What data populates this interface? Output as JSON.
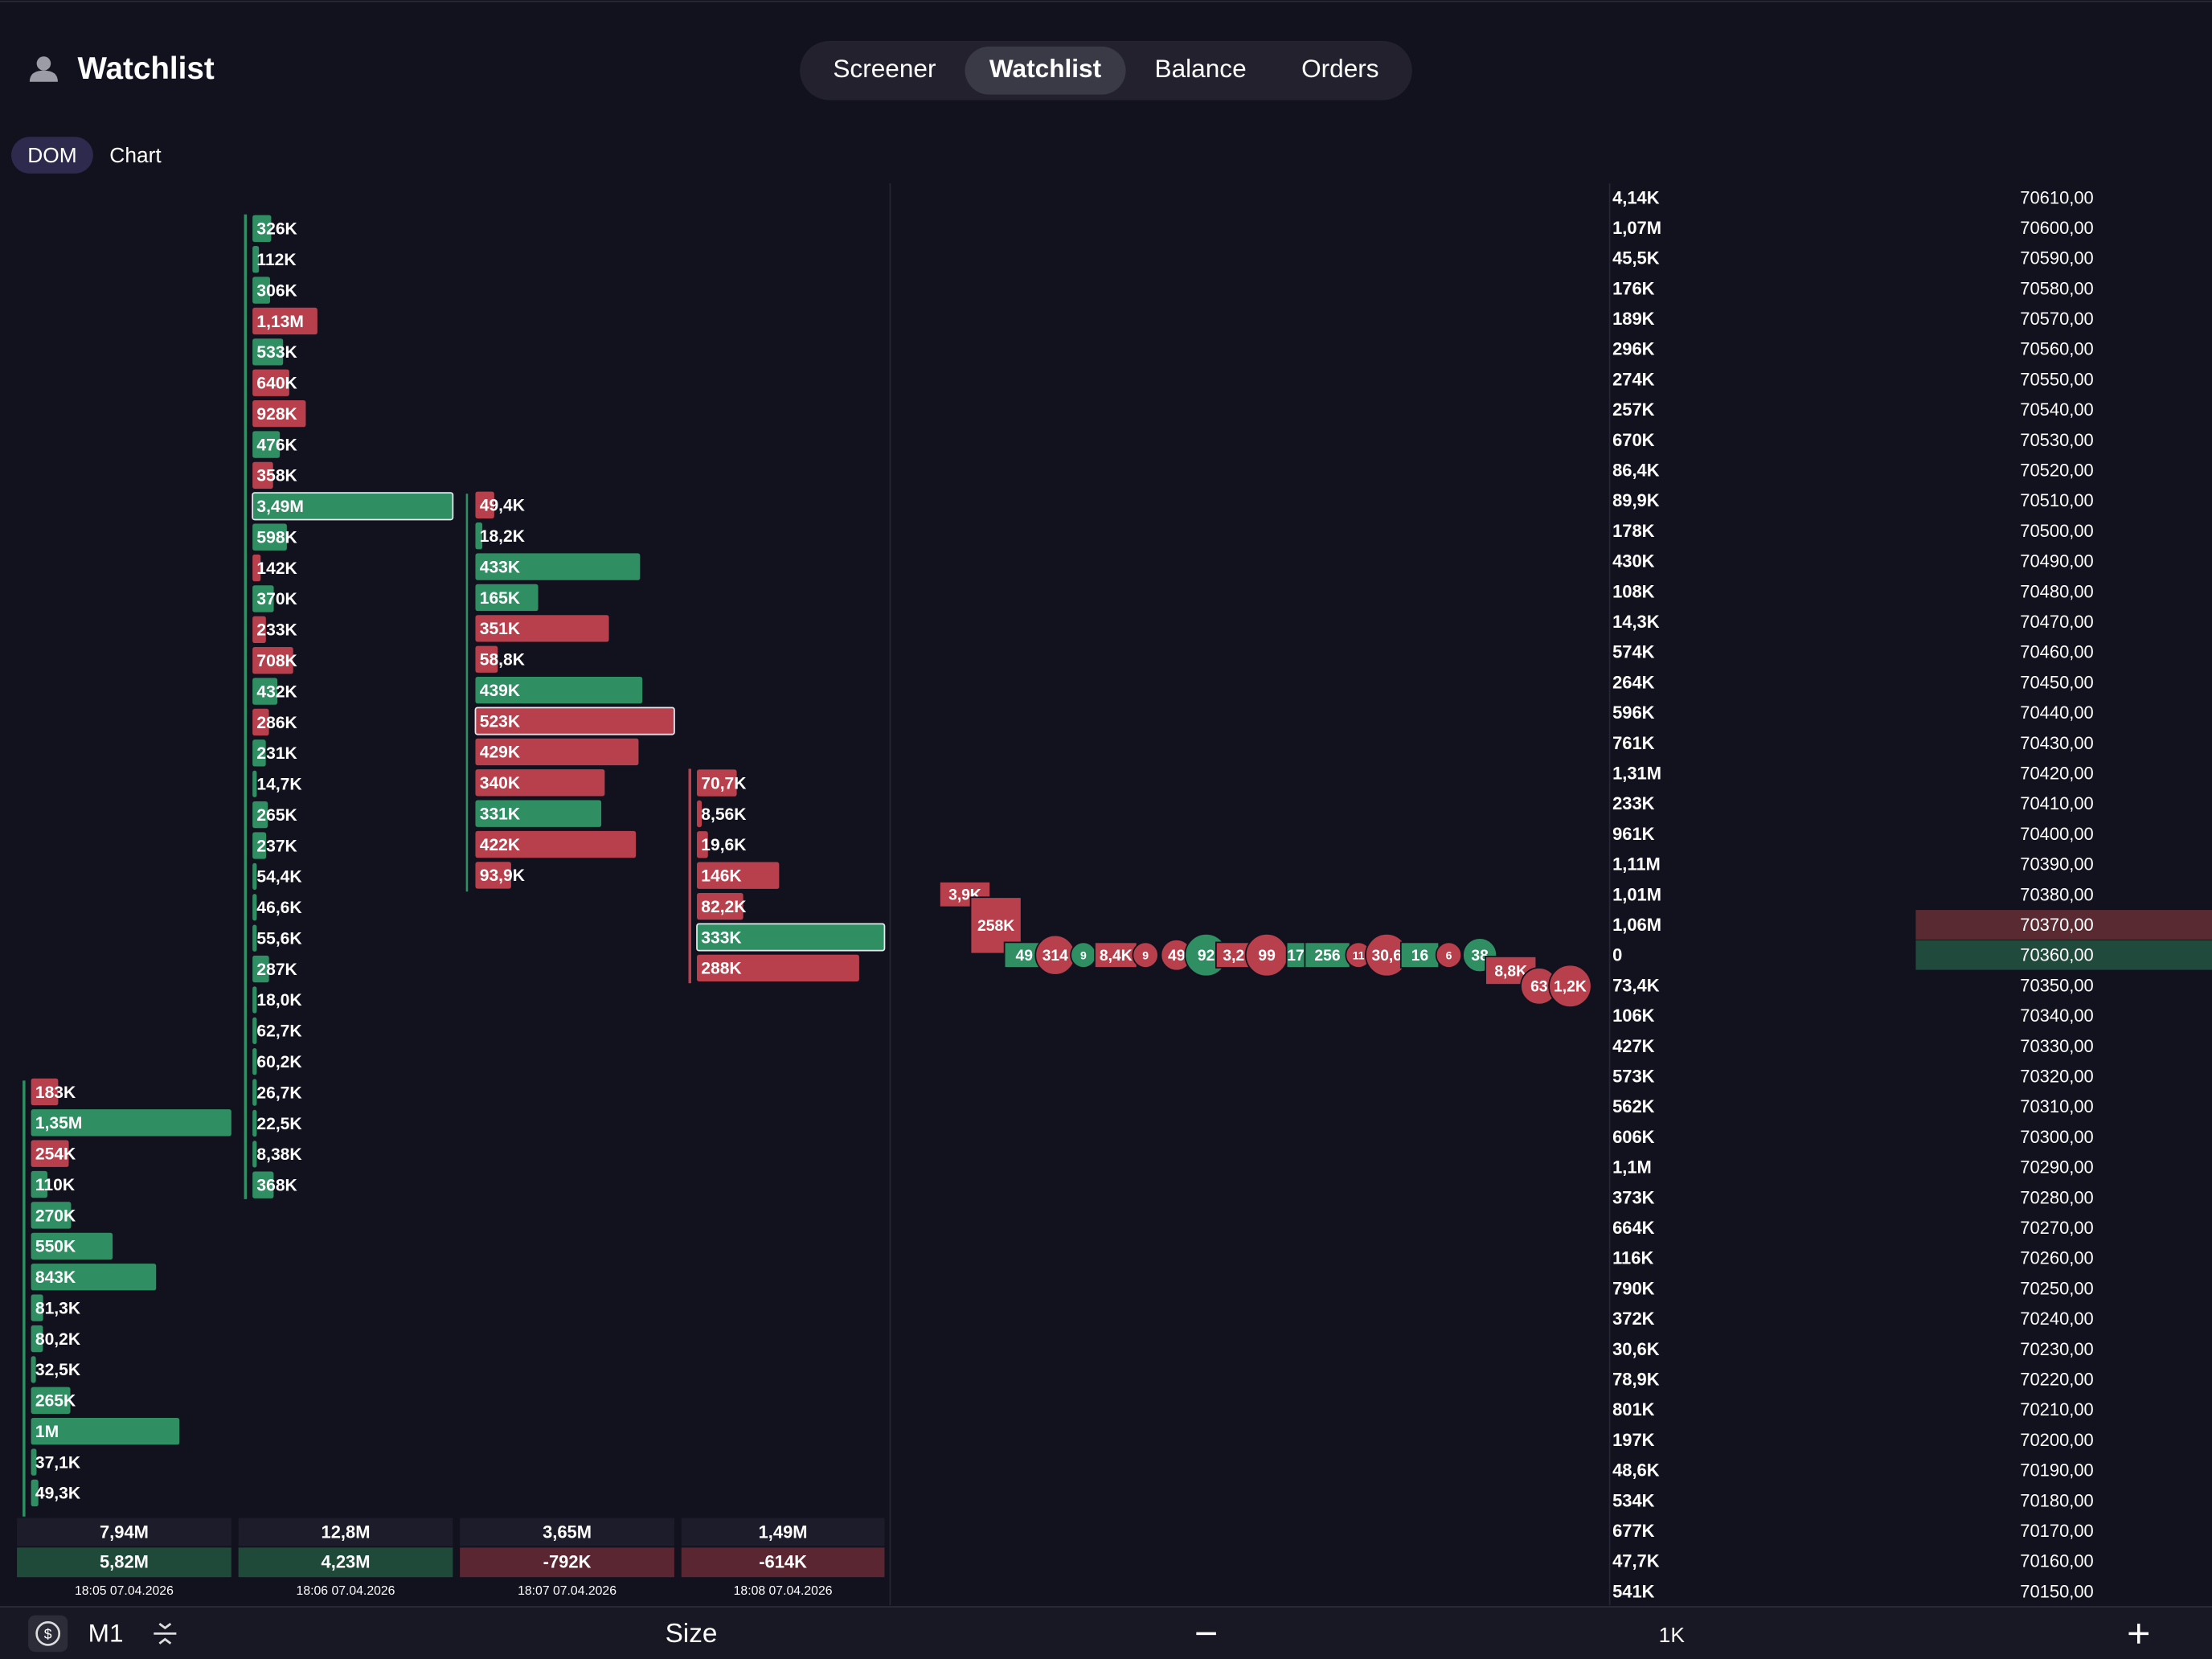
{
  "header": {
    "title": "Watchlist",
    "tabs": [
      {
        "label": "Screener"
      },
      {
        "label": "Watchlist",
        "active": true
      },
      {
        "label": "Balance"
      },
      {
        "label": "Orders"
      }
    ]
  },
  "view_tabs": [
    {
      "label": "DOM",
      "active": true
    },
    {
      "label": "Chart"
    }
  ],
  "columns": [
    {
      "levels": [
        {
          "volume": "183K",
          "side": "sell"
        },
        {
          "volume": "1,35M",
          "side": "buy"
        },
        {
          "volume": "254K",
          "side": "sell"
        },
        {
          "volume": "110K",
          "side": "buy"
        },
        {
          "volume": "270K",
          "side": "buy"
        },
        {
          "volume": "550K",
          "side": "buy"
        },
        {
          "volume": "843K",
          "side": "buy"
        },
        {
          "volume": "81,3K",
          "side": "buy"
        },
        {
          "volume": "80,2K",
          "side": "buy"
        },
        {
          "volume": "32,5K",
          "side": "buy"
        },
        {
          "volume": "265K",
          "side": "buy"
        },
        {
          "volume": "1M",
          "side": "buy"
        },
        {
          "volume": "37,1K",
          "side": "buy"
        },
        {
          "volume": "49,3K",
          "side": "buy"
        }
      ],
      "total": "7,94M",
      "delta": "5,82M",
      "time": "18:05 07.04.2026"
    },
    {
      "levels": [
        {
          "volume": "326K",
          "side": "buy"
        },
        {
          "volume": "112K",
          "side": "buy"
        },
        {
          "volume": "306K",
          "side": "buy"
        },
        {
          "volume": "1,13M",
          "side": "sell"
        },
        {
          "volume": "533K",
          "side": "buy"
        },
        {
          "volume": "640K",
          "side": "sell"
        },
        {
          "volume": "928K",
          "side": "sell"
        },
        {
          "volume": "476K",
          "side": "buy"
        },
        {
          "volume": "358K",
          "side": "sell"
        },
        {
          "volume": "3,49M",
          "side": "buy"
        },
        {
          "volume": "598K",
          "side": "buy"
        },
        {
          "volume": "142K",
          "side": "sell"
        },
        {
          "volume": "370K",
          "side": "buy"
        },
        {
          "volume": "233K",
          "side": "sell"
        },
        {
          "volume": "708K",
          "side": "sell"
        },
        {
          "volume": "432K",
          "side": "buy"
        },
        {
          "volume": "286K",
          "side": "sell"
        },
        {
          "volume": "231K",
          "side": "buy"
        },
        {
          "volume": "14,7K",
          "side": "buy"
        },
        {
          "volume": "265K",
          "side": "buy"
        },
        {
          "volume": "237K",
          "side": "buy"
        },
        {
          "volume": "54,4K",
          "side": "buy"
        },
        {
          "volume": "46,6K",
          "side": "buy"
        },
        {
          "volume": "55,6K",
          "side": "buy"
        },
        {
          "volume": "287K",
          "side": "buy"
        },
        {
          "volume": "18,0K",
          "side": "buy"
        },
        {
          "volume": "62,7K",
          "side": "buy"
        },
        {
          "volume": "60,2K",
          "side": "buy"
        },
        {
          "volume": "26,7K",
          "side": "buy"
        },
        {
          "volume": "22,5K",
          "side": "buy"
        },
        {
          "volume": "8,38K",
          "side": "buy"
        },
        {
          "volume": "368K",
          "side": "buy"
        }
      ],
      "total": "12,8M",
      "delta": "4,23M",
      "time": "18:06 07.04.2026"
    },
    {
      "levels": [
        {
          "volume": "49,4K",
          "side": "sell"
        },
        {
          "volume": "18,2K",
          "side": "buy"
        },
        {
          "volume": "433K",
          "side": "buy"
        },
        {
          "volume": "165K",
          "side": "buy"
        },
        {
          "volume": "351K",
          "side": "sell"
        },
        {
          "volume": "58,8K",
          "side": "sell"
        },
        {
          "volume": "439K",
          "side": "buy"
        },
        {
          "volume": "523K",
          "side": "sell"
        },
        {
          "volume": "429K",
          "side": "sell"
        },
        {
          "volume": "340K",
          "side": "sell"
        },
        {
          "volume": "331K",
          "side": "buy"
        },
        {
          "volume": "422K",
          "side": "sell"
        },
        {
          "volume": "93,9K",
          "side": "sell"
        }
      ],
      "total": "3,65M",
      "delta": "-792K",
      "time": "18:07 07.04.2026"
    },
    {
      "levels": [
        {
          "volume": "70,7K",
          "side": "sell"
        },
        {
          "volume": "8,56K",
          "side": "sell"
        },
        {
          "volume": "19,6K",
          "side": "sell"
        },
        {
          "volume": "146K",
          "side": "sell"
        },
        {
          "volume": "82,2K",
          "side": "sell"
        },
        {
          "volume": "333K",
          "side": "buy"
        },
        {
          "volume": "288K",
          "side": "sell"
        }
      ],
      "total": "1,49M",
      "delta": "-614K",
      "time": "18:08 07.04.2026"
    }
  ],
  "tape": [
    {
      "size": "3,9K",
      "side": "sell"
    },
    {
      "size": "258K",
      "side": "sell"
    },
    {
      "size": "49",
      "side": "buy"
    },
    {
      "size": "314",
      "side": "sell"
    },
    {
      "size": "9",
      "side": "buy"
    },
    {
      "size": "8,4K",
      "side": "sell"
    },
    {
      "size": "9",
      "side": "sell"
    },
    {
      "size": "49",
      "side": "sell"
    },
    {
      "size": "92",
      "side": "buy"
    },
    {
      "size": "3,2",
      "side": "sell"
    },
    {
      "size": "99",
      "side": "sell"
    },
    {
      "size": "17",
      "side": "buy"
    },
    {
      "size": "256",
      "side": "buy"
    },
    {
      "size": "11",
      "side": "sell"
    },
    {
      "size": "30,6",
      "side": "sell"
    },
    {
      "size": "16",
      "side": "buy"
    },
    {
      "size": "6",
      "side": "sell"
    },
    {
      "size": "38",
      "side": "buy"
    },
    {
      "size": "8,8K",
      "side": "sell"
    },
    {
      "size": "63",
      "side": "sell"
    },
    {
      "size": "1,2K",
      "side": "sell"
    }
  ],
  "ladder": [
    {
      "volume": "4,14K",
      "price": "70610,00",
      "side": "ask"
    },
    {
      "volume": "1,07M",
      "price": "70600,00",
      "side": "ask"
    },
    {
      "volume": "45,5K",
      "price": "70590,00",
      "side": "ask"
    },
    {
      "volume": "176K",
      "price": "70580,00",
      "side": "ask"
    },
    {
      "volume": "189K",
      "price": "70570,00",
      "side": "ask"
    },
    {
      "volume": "296K",
      "price": "70560,00",
      "side": "ask"
    },
    {
      "volume": "274K",
      "price": "70550,00",
      "side": "ask"
    },
    {
      "volume": "257K",
      "price": "70540,00",
      "side": "ask"
    },
    {
      "volume": "670K",
      "price": "70530,00",
      "side": "ask"
    },
    {
      "volume": "86,4K",
      "price": "70520,00",
      "side": "ask"
    },
    {
      "volume": "89,9K",
      "price": "70510,00",
      "side": "ask"
    },
    {
      "volume": "178K",
      "price": "70500,00",
      "side": "ask"
    },
    {
      "volume": "430K",
      "price": "70490,00",
      "side": "ask"
    },
    {
      "volume": "108K",
      "price": "70480,00",
      "side": "ask"
    },
    {
      "volume": "14,3K",
      "price": "70470,00",
      "side": "ask"
    },
    {
      "volume": "574K",
      "price": "70460,00",
      "side": "ask"
    },
    {
      "volume": "264K",
      "price": "70450,00",
      "side": "ask"
    },
    {
      "volume": "596K",
      "price": "70440,00",
      "side": "ask"
    },
    {
      "volume": "761K",
      "price": "70430,00",
      "side": "ask"
    },
    {
      "volume": "1,31M",
      "price": "70420,00",
      "side": "ask"
    },
    {
      "volume": "233K",
      "price": "70410,00",
      "side": "ask"
    },
    {
      "volume": "961K",
      "price": "70400,00",
      "side": "ask"
    },
    {
      "volume": "1,11M",
      "price": "70390,00",
      "side": "ask"
    },
    {
      "volume": "1,01M",
      "price": "70380,00",
      "side": "ask"
    },
    {
      "volume": "1,06M",
      "price": "70370,00",
      "side": "ask",
      "best": true
    },
    {
      "volume": "0",
      "price": "70360,00",
      "side": "bid",
      "best": true
    },
    {
      "volume": "73,4K",
      "price": "70350,00",
      "side": "bid"
    },
    {
      "volume": "106K",
      "price": "70340,00",
      "side": "bid"
    },
    {
      "volume": "427K",
      "price": "70330,00",
      "side": "bid"
    },
    {
      "volume": "573K",
      "price": "70320,00",
      "side": "bid"
    },
    {
      "volume": "562K",
      "price": "70310,00",
      "side": "bid"
    },
    {
      "volume": "606K",
      "price": "70300,00",
      "side": "bid"
    },
    {
      "volume": "1,1M",
      "price": "70290,00",
      "side": "bid"
    },
    {
      "volume": "373K",
      "price": "70280,00",
      "side": "bid"
    },
    {
      "volume": "664K",
      "price": "70270,00",
      "side": "bid"
    },
    {
      "volume": "116K",
      "price": "70260,00",
      "side": "bid"
    },
    {
      "volume": "790K",
      "price": "70250,00",
      "side": "bid"
    },
    {
      "volume": "372K",
      "price": "70240,00",
      "side": "bid"
    },
    {
      "volume": "30,6K",
      "price": "70230,00",
      "side": "bid"
    },
    {
      "volume": "78,9K",
      "price": "70220,00",
      "side": "bid"
    },
    {
      "volume": "801K",
      "price": "70210,00",
      "side": "bid"
    },
    {
      "volume": "197K",
      "price": "70200,00",
      "side": "bid"
    },
    {
      "volume": "48,6K",
      "price": "70190,00",
      "side": "bid"
    },
    {
      "volume": "534K",
      "price": "70180,00",
      "side": "bid"
    },
    {
      "volume": "677K",
      "price": "70170,00",
      "side": "bid"
    },
    {
      "volume": "47,7K",
      "price": "70160,00",
      "side": "bid"
    },
    {
      "volume": "541K",
      "price": "70150,00",
      "side": "bid"
    }
  ],
  "toolbar": {
    "timeframe": "M1",
    "mode": "Size",
    "step": "1K"
  }
}
